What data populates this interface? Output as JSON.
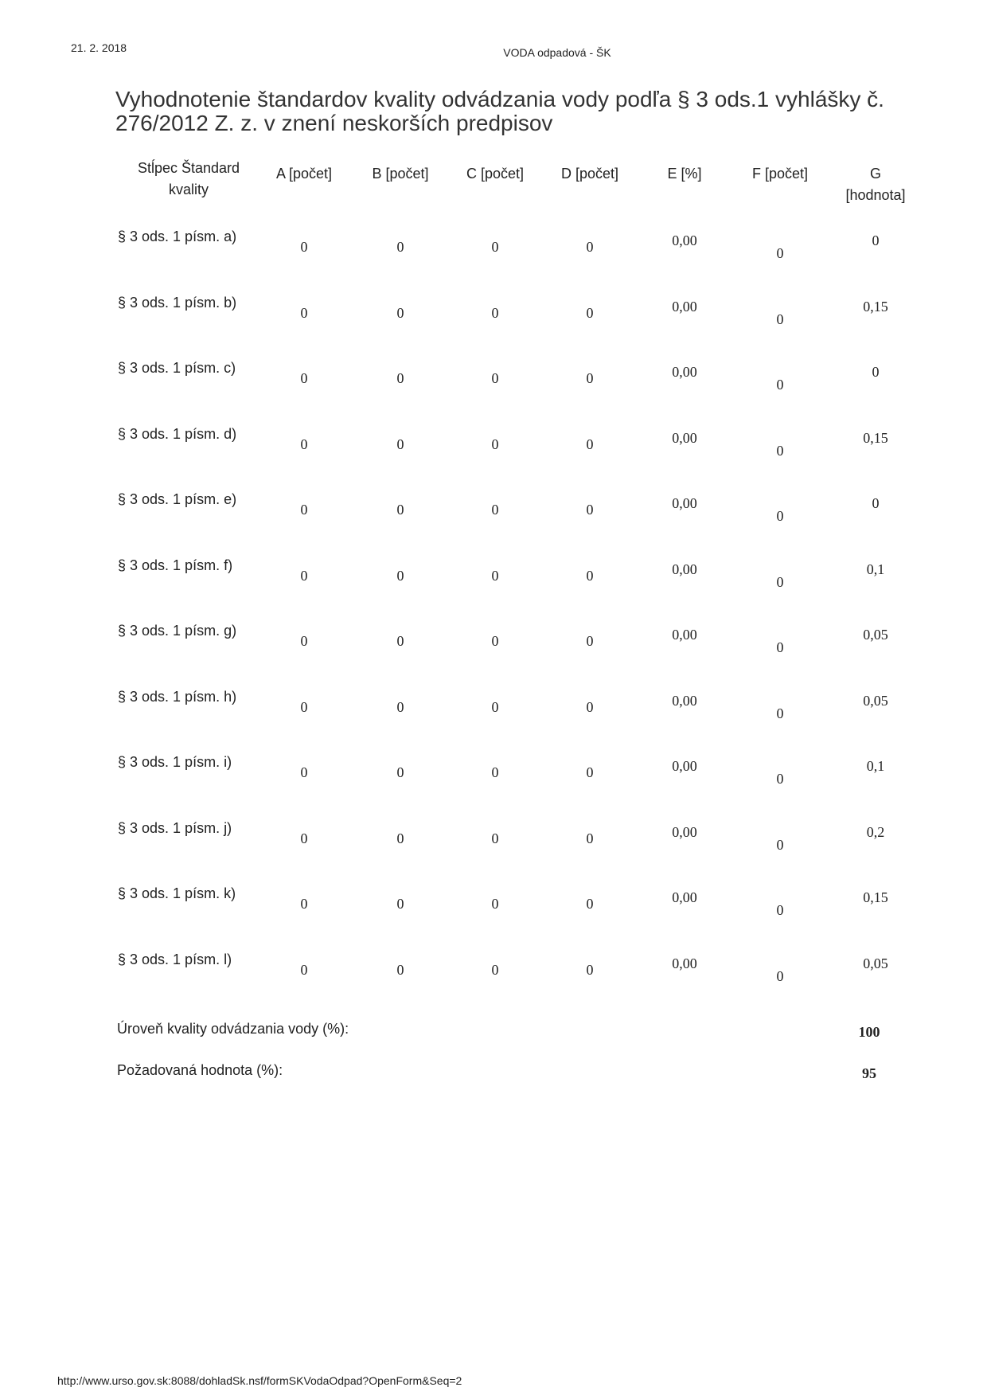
{
  "header": {
    "date": "21. 2. 2018",
    "title": "VODA odpadová - ŠK"
  },
  "document": {
    "title": "Vyhodnotenie štandardov kvality odvádzania vody podľa § 3 ods.1 vyhlášky č. 276/2012 Z. z. v znení neskorších predpisov"
  },
  "table": {
    "columns": [
      "Stĺpec Štandard kvality",
      "A [počet]",
      "B [počet]",
      "C [počet]",
      "D [počet]",
      "E [%]",
      "F [počet]",
      "G [hodnota]"
    ],
    "rows": [
      [
        "§ 3 ods. 1 písm. a)",
        "0",
        "0",
        "0",
        "0",
        "0,00",
        "0",
        "0"
      ],
      [
        "§ 3 ods. 1 písm. b)",
        "0",
        "0",
        "0",
        "0",
        "0,00",
        "0",
        "0,15"
      ],
      [
        "§ 3 ods. 1 písm. c)",
        "0",
        "0",
        "0",
        "0",
        "0,00",
        "0",
        "0"
      ],
      [
        "§ 3 ods. 1 písm. d)",
        "0",
        "0",
        "0",
        "0",
        "0,00",
        "0",
        "0,15"
      ],
      [
        "§ 3 ods. 1 písm. e)",
        "0",
        "0",
        "0",
        "0",
        "0,00",
        "0",
        "0"
      ],
      [
        "§ 3 ods. 1 písm. f)",
        "0",
        "0",
        "0",
        "0",
        "0,00",
        "0",
        "0,1"
      ],
      [
        "§ 3 ods. 1 písm. g)",
        "0",
        "0",
        "0",
        "0",
        "0,00",
        "0",
        "0,05"
      ],
      [
        "§ 3 ods. 1 písm. h)",
        "0",
        "0",
        "0",
        "0",
        "0,00",
        "0",
        "0,05"
      ],
      [
        "§ 3 ods. 1 písm. i)",
        "0",
        "0",
        "0",
        "0",
        "0,00",
        "0",
        "0,1"
      ],
      [
        "§ 3 ods. 1 písm. j)",
        "0",
        "0",
        "0",
        "0",
        "0,00",
        "0",
        "0,2"
      ],
      [
        "§ 3 ods. 1 písm. k)",
        "0",
        "0",
        "0",
        "0",
        "0,00",
        "0",
        "0,15"
      ],
      [
        "§ 3 ods. 1 písm. l)",
        "0",
        "0",
        "0",
        "0",
        "0,00",
        "0",
        "0,05"
      ]
    ]
  },
  "summary": [
    {
      "label": "Úroveň kvality odvádzania vody (%):",
      "value": "100"
    },
    {
      "label": "Požadovaná hodnota (%):",
      "value": "95"
    }
  ],
  "footer": {
    "url": "http://www.urso.gov.sk:8088/dohladSk.nsf/formSKVodaOdpad?OpenForm&Seq=2"
  }
}
